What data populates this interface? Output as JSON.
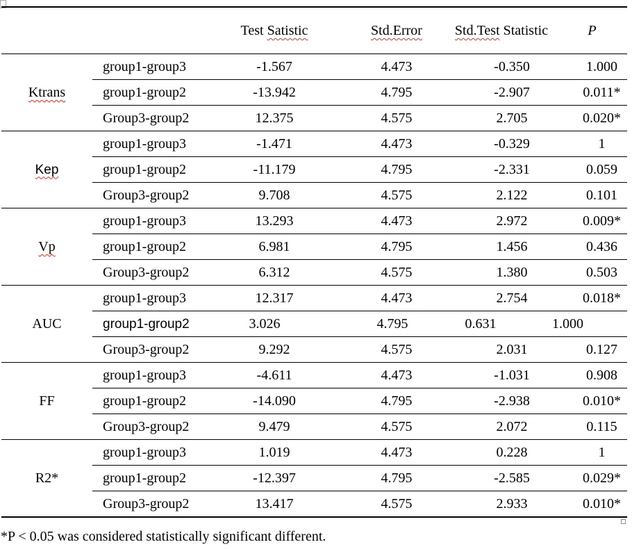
{
  "table": {
    "header": {
      "test_statistic": {
        "pre": "Test ",
        "wavy": "Satistic"
      },
      "std_error": {
        "wavy": "Std.Error"
      },
      "std_test_statistic": {
        "wavy": "Std.Test",
        "post": " Statistic"
      },
      "p": "P"
    },
    "groups": [
      {
        "parameter": "Ktrans",
        "rows": [
          {
            "comparison": "group1-group3",
            "test_statistic": "-1.567",
            "std_error": "4.473",
            "std_test": "-0.350",
            "p": "1.000"
          },
          {
            "comparison": "group1-group2",
            "test_statistic": "-13.942",
            "std_error": "4.795",
            "std_test": "-2.907",
            "p": "0.011*"
          },
          {
            "comparison": "Group3-group2",
            "test_statistic": "12.375",
            "std_error": "4.575",
            "std_test": "2.705",
            "p": "0.020*"
          }
        ]
      },
      {
        "parameter": "Kep",
        "rows": [
          {
            "comparison": "group1-group3",
            "test_statistic": "-1.471",
            "std_error": "4.473",
            "std_test": "-0.329",
            "p": "1"
          },
          {
            "comparison": "group1-group2",
            "test_statistic": "-11.179",
            "std_error": "4.795",
            "std_test": "-2.331",
            "p": "0.059"
          },
          {
            "comparison": "Group3-group2",
            "test_statistic": "9.708",
            "std_error": "4.575",
            "std_test": "2.122",
            "p": "0.101"
          }
        ]
      },
      {
        "parameter": "Vp",
        "rows": [
          {
            "comparison": "group1-group3",
            "test_statistic": "13.293",
            "std_error": "4.473",
            "std_test": "2.972",
            "p": "0.009*"
          },
          {
            "comparison": "group1-group2",
            "test_statistic": "6.981",
            "std_error": "4.795",
            "std_test": "1.456",
            "p": "0.436"
          },
          {
            "comparison": "Group3-group2",
            "test_statistic": "6.312",
            "std_error": "4.575",
            "std_test": "1.380",
            "p": "0.503"
          }
        ]
      },
      {
        "parameter": "AUC",
        "rows": [
          {
            "comparison": "group1-group3",
            "test_statistic": "12.317",
            "std_error": "4.473",
            "std_test": "2.754",
            "p": "0.018*"
          },
          {
            "comparison": "group1-group2",
            "test_statistic": "3.026",
            "std_error": "4.795",
            "std_test": "0.631",
            "p": "1.000"
          },
          {
            "comparison": "Group3-group2",
            "test_statistic": "9.292",
            "std_error": "4.575",
            "std_test": "2.031",
            "p": "0.127"
          }
        ]
      },
      {
        "parameter": "FF",
        "rows": [
          {
            "comparison": "group1-group3",
            "test_statistic": "-4.611",
            "std_error": "4.473",
            "std_test": "-1.031",
            "p": "0.908"
          },
          {
            "comparison": "group1-group2",
            "test_statistic": "-14.090",
            "std_error": "4.795",
            "std_test": "-2.938",
            "p": "0.010*"
          },
          {
            "comparison": "Group3-group2",
            "test_statistic": "9.479",
            "std_error": "4.575",
            "std_test": "2.072",
            "p": "0.115"
          }
        ]
      },
      {
        "parameter": "R2*",
        "rows": [
          {
            "comparison": "group1-group3",
            "test_statistic": "1.019",
            "std_error": "4.473",
            "std_test": "0.228",
            "p": "1"
          },
          {
            "comparison": "group1-group2",
            "test_statistic": "-12.397",
            "std_error": "4.795",
            "std_test": "-2.585",
            "p": "0.029*"
          },
          {
            "comparison": "Group3-group2",
            "test_statistic": "13.417",
            "std_error": "4.575",
            "std_test": "2.933",
            "p": "0.010*"
          }
        ]
      }
    ],
    "footnote": "*P < 0.05 was considered statistically significant different."
  }
}
